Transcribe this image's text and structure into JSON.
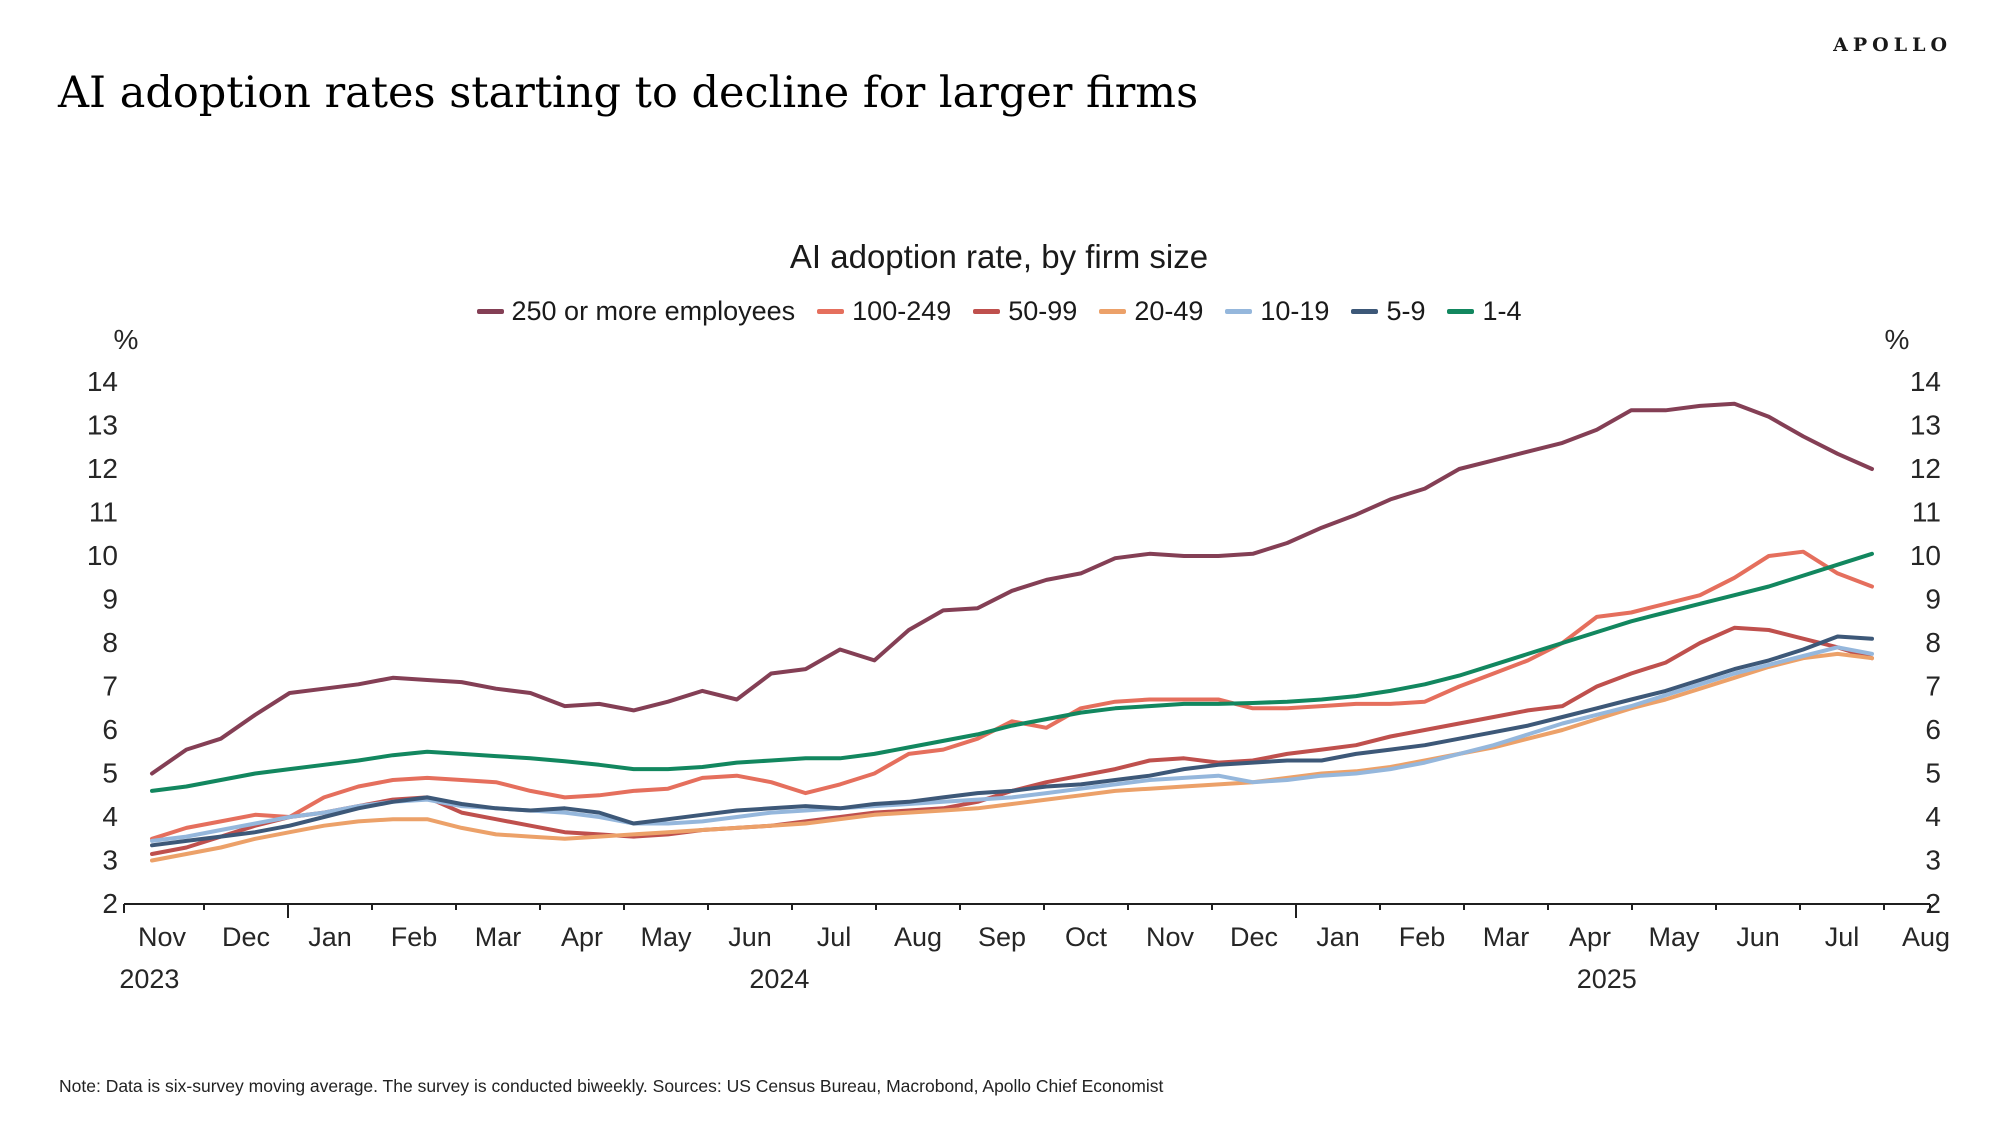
{
  "header": {
    "brand": "APOLLO",
    "title": "AI adoption rates starting to decline for larger firms"
  },
  "footer": {
    "note": "Note: Data is six-survey moving average. The survey is conducted biweekly. Sources: US Census Bureau, Macrobond, Apollo Chief Economist"
  },
  "chart_data": {
    "type": "line",
    "title": "AI adoption rate, by firm size",
    "unit_label": "%",
    "ylim": [
      2,
      14
    ],
    "yticks": [
      2,
      3,
      4,
      5,
      6,
      7,
      8,
      9,
      10,
      11,
      12,
      13,
      14
    ],
    "grid": false,
    "legend_position": "top-center",
    "x_month_labels": [
      "Nov",
      "Dec",
      "Jan",
      "Feb",
      "Mar",
      "Apr",
      "May",
      "Jun",
      "Jul",
      "Aug",
      "Sep",
      "Oct",
      "Nov",
      "Dec",
      "Jan",
      "Feb",
      "Mar",
      "Apr",
      "May",
      "Jun",
      "Jul",
      "Aug"
    ],
    "x_year_labels": [
      {
        "text": "2023",
        "month_pos": -0.15
      },
      {
        "text": "2024",
        "month_pos": 7.35
      },
      {
        "text": "2025",
        "month_pos": 17.2
      }
    ],
    "year_boundaries_after_month": [
      1,
      13
    ],
    "series": [
      {
        "name": "250 or more employees",
        "color": "#843F55",
        "values": [
          5.0,
          5.55,
          5.8,
          6.35,
          6.85,
          6.95,
          7.05,
          7.2,
          7.15,
          7.1,
          6.95,
          6.85,
          6.55,
          6.6,
          6.45,
          6.65,
          6.9,
          6.7,
          7.3,
          7.4,
          7.85,
          7.6,
          8.3,
          8.75,
          8.8,
          9.2,
          9.45,
          9.6,
          9.95,
          10.05,
          10.0,
          10.0,
          10.05,
          10.3,
          10.65,
          10.95,
          11.3,
          11.55,
          12.0,
          12.2,
          12.4,
          12.6,
          12.9,
          13.35,
          13.35,
          13.45,
          13.5,
          13.2,
          12.75,
          12.35,
          12.0
        ]
      },
      {
        "name": "100-249",
        "color": "#E56F5D",
        "values": [
          3.5,
          3.75,
          3.9,
          4.05,
          4.0,
          4.45,
          4.7,
          4.85,
          4.9,
          4.85,
          4.8,
          4.6,
          4.45,
          4.5,
          4.6,
          4.65,
          4.9,
          4.95,
          4.8,
          4.55,
          4.75,
          5.0,
          5.45,
          5.55,
          5.8,
          6.2,
          6.05,
          6.5,
          6.65,
          6.7,
          6.7,
          6.7,
          6.5,
          6.5,
          6.55,
          6.6,
          6.6,
          6.65,
          7.0,
          7.3,
          7.6,
          8.0,
          8.6,
          8.7,
          8.9,
          9.1,
          9.5,
          10.0,
          10.1,
          9.6,
          9.3
        ]
      },
      {
        "name": "50-99",
        "color": "#BF504D",
        "values": [
          3.15,
          3.3,
          3.55,
          3.8,
          4.0,
          4.1,
          4.25,
          4.4,
          4.45,
          4.1,
          3.95,
          3.8,
          3.65,
          3.6,
          3.55,
          3.6,
          3.7,
          3.75,
          3.8,
          3.9,
          4.0,
          4.1,
          4.15,
          4.2,
          4.35,
          4.6,
          4.8,
          4.95,
          5.1,
          5.3,
          5.35,
          5.25,
          5.3,
          5.45,
          5.55,
          5.65,
          5.85,
          6.0,
          6.15,
          6.3,
          6.45,
          6.55,
          7.0,
          7.3,
          7.55,
          8.0,
          8.35,
          8.3,
          8.1,
          7.9,
          7.65
        ]
      },
      {
        "name": "20-49",
        "color": "#ECA169",
        "values": [
          3.0,
          3.15,
          3.3,
          3.5,
          3.65,
          3.8,
          3.9,
          3.95,
          3.95,
          3.75,
          3.6,
          3.55,
          3.5,
          3.55,
          3.6,
          3.65,
          3.7,
          3.75,
          3.8,
          3.85,
          3.95,
          4.05,
          4.1,
          4.15,
          4.2,
          4.3,
          4.4,
          4.5,
          4.6,
          4.65,
          4.7,
          4.75,
          4.8,
          4.9,
          5.0,
          5.05,
          5.15,
          5.3,
          5.45,
          5.6,
          5.8,
          6.0,
          6.25,
          6.5,
          6.7,
          6.95,
          7.2,
          7.45,
          7.65,
          7.75,
          7.65
        ]
      },
      {
        "name": "10-19",
        "color": "#95B7DC",
        "values": [
          3.45,
          3.55,
          3.7,
          3.85,
          4.0,
          4.1,
          4.25,
          4.35,
          4.4,
          4.25,
          4.2,
          4.15,
          4.1,
          4.0,
          3.85,
          3.85,
          3.9,
          4.0,
          4.1,
          4.15,
          4.2,
          4.25,
          4.3,
          4.35,
          4.4,
          4.45,
          4.55,
          4.65,
          4.75,
          4.85,
          4.9,
          4.95,
          4.8,
          4.85,
          4.95,
          5.0,
          5.1,
          5.25,
          5.45,
          5.65,
          5.9,
          6.15,
          6.35,
          6.55,
          6.8,
          7.05,
          7.3,
          7.5,
          7.7,
          7.9,
          7.75
        ]
      },
      {
        "name": "5-9",
        "color": "#3D5878",
        "values": [
          3.35,
          3.45,
          3.55,
          3.65,
          3.8,
          4.0,
          4.2,
          4.35,
          4.45,
          4.3,
          4.2,
          4.15,
          4.2,
          4.1,
          3.85,
          3.95,
          4.05,
          4.15,
          4.2,
          4.25,
          4.2,
          4.3,
          4.35,
          4.45,
          4.55,
          4.6,
          4.7,
          4.75,
          4.85,
          4.95,
          5.1,
          5.2,
          5.25,
          5.3,
          5.3,
          5.45,
          5.55,
          5.65,
          5.8,
          5.95,
          6.1,
          6.3,
          6.5,
          6.7,
          6.9,
          7.15,
          7.4,
          7.6,
          7.85,
          8.15,
          8.1
        ]
      },
      {
        "name": "1-4",
        "color": "#12875F",
        "values": [
          4.6,
          4.7,
          4.85,
          5.0,
          5.1,
          5.2,
          5.3,
          5.42,
          5.5,
          5.45,
          5.4,
          5.35,
          5.28,
          5.2,
          5.1,
          5.1,
          5.15,
          5.25,
          5.3,
          5.35,
          5.35,
          5.45,
          5.6,
          5.75,
          5.9,
          6.1,
          6.25,
          6.4,
          6.5,
          6.55,
          6.6,
          6.6,
          6.62,
          6.65,
          6.7,
          6.78,
          6.9,
          7.05,
          7.25,
          7.5,
          7.75,
          8.0,
          8.25,
          8.5,
          8.7,
          8.9,
          9.1,
          9.3,
          9.55,
          9.8,
          10.05
        ]
      }
    ]
  }
}
